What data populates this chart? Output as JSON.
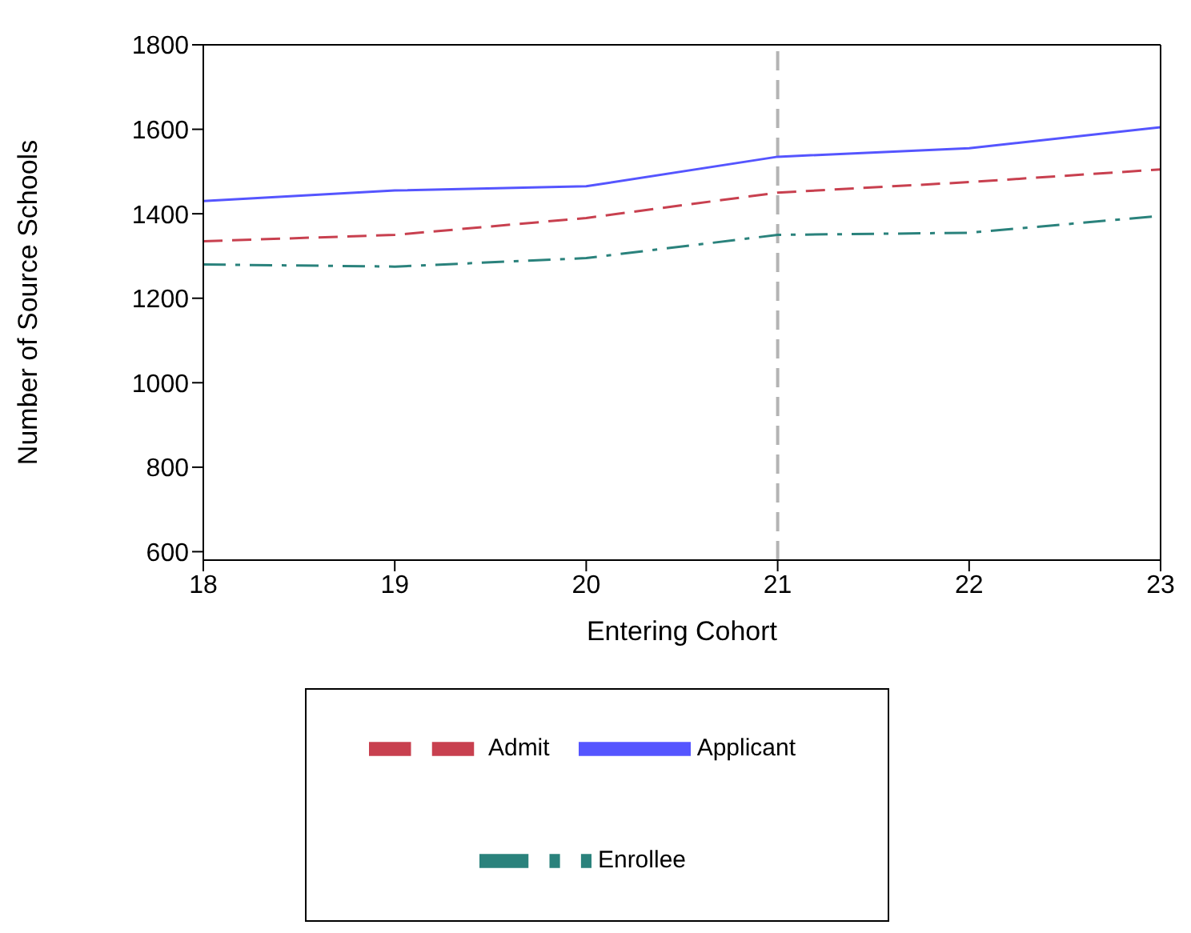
{
  "chart_data": {
    "type": "line",
    "xlabel": "Entering Cohort",
    "ylabel": "Number of Source Schools",
    "x": [
      18,
      19,
      20,
      21,
      22,
      23
    ],
    "series": [
      {
        "name": "Applicant",
        "color": "#5555ff",
        "line_style": "solid",
        "values": [
          1430,
          1455,
          1465,
          1535,
          1555,
          1605
        ]
      },
      {
        "name": "Admit",
        "color": "#c8404f",
        "line_style": "dashed",
        "values": [
          1335,
          1350,
          1390,
          1450,
          1475,
          1505
        ]
      },
      {
        "name": "Enrollee",
        "color": "#2a827c",
        "line_style": "dashdot",
        "values": [
          1280,
          1275,
          1295,
          1350,
          1355,
          1395
        ]
      }
    ],
    "xlim": [
      18,
      23
    ],
    "xticks": [
      18,
      19,
      20,
      21,
      22,
      23
    ],
    "ylim": [
      580,
      1800
    ],
    "yticks": [
      600,
      800,
      1000,
      1200,
      1400,
      1600,
      1800
    ],
    "ref_lines": [
      {
        "axis": "x",
        "value": 21,
        "color": "#b4b4b4",
        "line_style": "dashed"
      }
    ],
    "grid": false,
    "legend": "bottom",
    "marker": "none"
  }
}
